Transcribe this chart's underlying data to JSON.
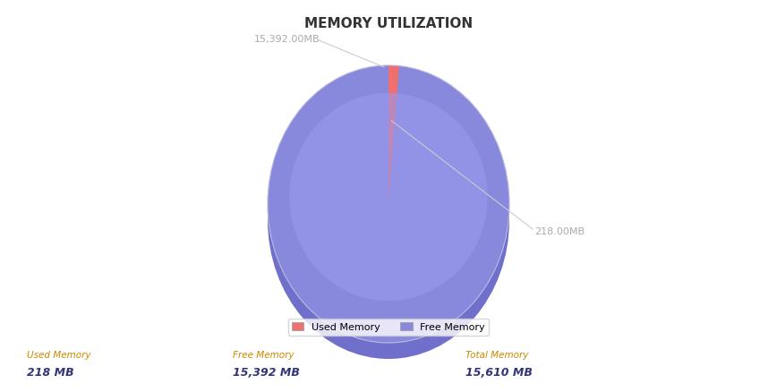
{
  "title": "MEMORY UTILIZATION",
  "used_memory": 218,
  "free_memory": 15392,
  "total_memory": 15610,
  "used_label": "218.00MB",
  "free_label": "15,392.00MB",
  "used_color": "#f07070",
  "free_color": "#8888dd",
  "free_color_dark": "#7070cc",
  "free_color_light": "#9999ee",
  "background_color": "#ffffff",
  "legend_used": "Used Memory",
  "legend_free": "Free Memory",
  "stat_used_title": "Used Memory",
  "stat_used_val": "218 MB",
  "stat_free_title": "Free Memory",
  "stat_free_val": "15,392 MB",
  "stat_total_title": "Total Memory",
  "stat_total_val": "15,610 MB",
  "label_color": "#aaaaaa",
  "stat_title_color": "#cc8800",
  "stat_val_color": "#333377"
}
